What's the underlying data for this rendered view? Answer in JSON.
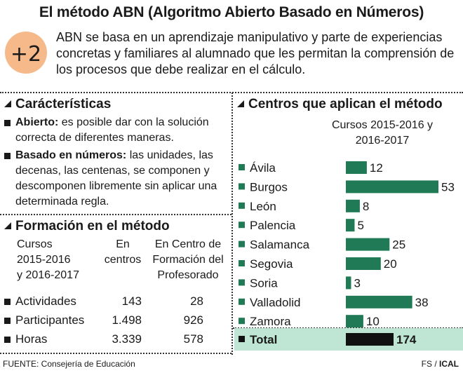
{
  "title": "El método ABN (Algoritmo Abierto Basado en Números)",
  "logo_text": "+2",
  "intro": "ABN se basa en un aprendizaje manipulativo y parte de experiencias concretas y familiares al alumnado que les permitan la comprensión de los procesos que debe realizar en el cálculo.",
  "characteristics": {
    "title": "Carácterísticas",
    "items": [
      {
        "term": "Abierto:",
        "text": " es posible dar con la solución correcta de diferentes maneras."
      },
      {
        "term": "Basado en números:",
        "text": " las unidades, las decenas, las centenas, se componen y descomponen libremente sin aplicar una determinada regla."
      }
    ]
  },
  "training": {
    "title": "Formación en el método",
    "headers": {
      "col1": [
        "Cursos",
        "2015-2016",
        "y 2016-2017"
      ],
      "col2": [
        "En",
        "centros"
      ],
      "col3": [
        "En Centro de",
        "Formación del",
        "Profesorado"
      ]
    },
    "rows": [
      {
        "label": "Actividades",
        "centros": "143",
        "cfp": "28"
      },
      {
        "label": "Participantes",
        "centros": "1.498",
        "cfp": "926"
      },
      {
        "label": "Horas",
        "centros": "3.339",
        "cfp": "578"
      }
    ]
  },
  "chart_data": {
    "type": "bar",
    "orientation": "horizontal",
    "title": "Centros que aplican el método",
    "subtitle": "Cursos 2015-2016 y 2016-2017",
    "categories": [
      "Ávila",
      "Burgos",
      "León",
      "Palencia",
      "Salamanca",
      "Segovia",
      "Soria",
      "Valladolid",
      "Zamora"
    ],
    "values": [
      12,
      53,
      8,
      5,
      25,
      20,
      3,
      38,
      10
    ],
    "bar_color": "#1f7a55",
    "total": {
      "label": "Total",
      "value": 174,
      "color": "#111111",
      "band_color": "#bfe6d4"
    },
    "xlim": [
      0,
      53
    ],
    "grid": false,
    "legend": "none"
  },
  "footer": {
    "source": "FUENTE: Consejería de Educación",
    "credit_prefix": "FS / ",
    "credit_agency": "ICAL"
  }
}
